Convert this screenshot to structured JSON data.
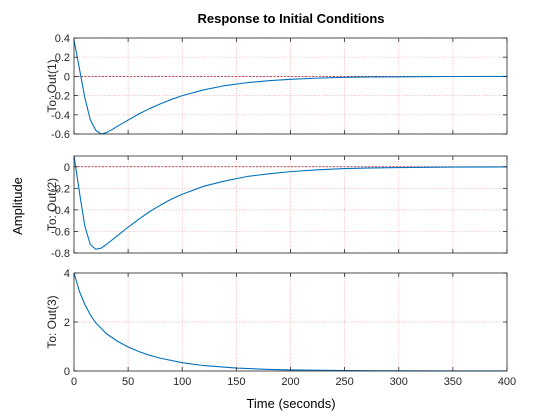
{
  "chart_data": {
    "type": "line",
    "title": "Response to Initial Conditions",
    "xlabel": "Time (seconds)",
    "ylabel": "Amplitude",
    "xlim": [
      0,
      400
    ],
    "xticks": [
      0,
      50,
      100,
      150,
      200,
      250,
      300,
      350,
      400
    ],
    "grid": true,
    "colors": {
      "line": "#0072BD",
      "zero_line": "#A2142F",
      "grid": "#F4A7A7",
      "axes": "#262626"
    },
    "subplots": [
      {
        "ylabel": "To: Out(1)",
        "ylim": [
          -0.6,
          0.4
        ],
        "yticks": [
          -0.6,
          -0.4,
          -0.2,
          0,
          0.2,
          0.4
        ],
        "ytick_labels": [
          "-0.6",
          "-0.4",
          "-0.2",
          "0",
          "0.2",
          "0.4"
        ],
        "zero_line": true,
        "x": [
          0,
          5,
          10,
          15,
          20,
          25,
          30,
          35,
          40,
          50,
          60,
          70,
          80,
          90,
          100,
          120,
          140,
          160,
          180,
          200,
          225,
          250,
          275,
          300,
          350,
          400
        ],
        "y": [
          0.38,
          0.08,
          -0.22,
          -0.45,
          -0.56,
          -0.6,
          -0.585,
          -0.555,
          -0.52,
          -0.455,
          -0.39,
          -0.335,
          -0.285,
          -0.24,
          -0.2,
          -0.14,
          -0.095,
          -0.065,
          -0.045,
          -0.03,
          -0.018,
          -0.01,
          -0.006,
          -0.004,
          -0.001,
          0
        ]
      },
      {
        "ylabel": "To: Out(2)",
        "ylim": [
          -0.8,
          0.1
        ],
        "yticks": [
          -0.8,
          -0.6,
          -0.4,
          -0.2,
          0
        ],
        "ytick_labels": [
          "-0.8",
          "-0.6",
          "-0.4",
          "-0.2",
          "0"
        ],
        "zero_line": true,
        "x": [
          0,
          3,
          6,
          10,
          15,
          20,
          25,
          30,
          40,
          50,
          60,
          70,
          80,
          90,
          100,
          120,
          140,
          160,
          180,
          200,
          225,
          250,
          275,
          300,
          350,
          400
        ],
        "y": [
          0.1,
          -0.1,
          -0.3,
          -0.55,
          -0.72,
          -0.765,
          -0.755,
          -0.72,
          -0.64,
          -0.56,
          -0.485,
          -0.415,
          -0.355,
          -0.3,
          -0.255,
          -0.18,
          -0.13,
          -0.09,
          -0.065,
          -0.045,
          -0.028,
          -0.017,
          -0.011,
          -0.007,
          -0.003,
          -0.001
        ]
      },
      {
        "ylabel": "To: Out(3)",
        "ylim": [
          0,
          4
        ],
        "yticks": [
          0,
          2,
          4
        ],
        "ytick_labels": [
          "0",
          "2",
          "4"
        ],
        "zero_line": false,
        "x": [
          0,
          5,
          10,
          15,
          20,
          30,
          40,
          50,
          60,
          70,
          80,
          100,
          120,
          150,
          180,
          200,
          250,
          300,
          350,
          400
        ],
        "y": [
          4.0,
          3.25,
          2.72,
          2.3,
          1.97,
          1.52,
          1.22,
          0.98,
          0.79,
          0.64,
          0.52,
          0.34,
          0.22,
          0.12,
          0.065,
          0.043,
          0.016,
          0.006,
          0.002,
          0.001
        ]
      }
    ]
  }
}
